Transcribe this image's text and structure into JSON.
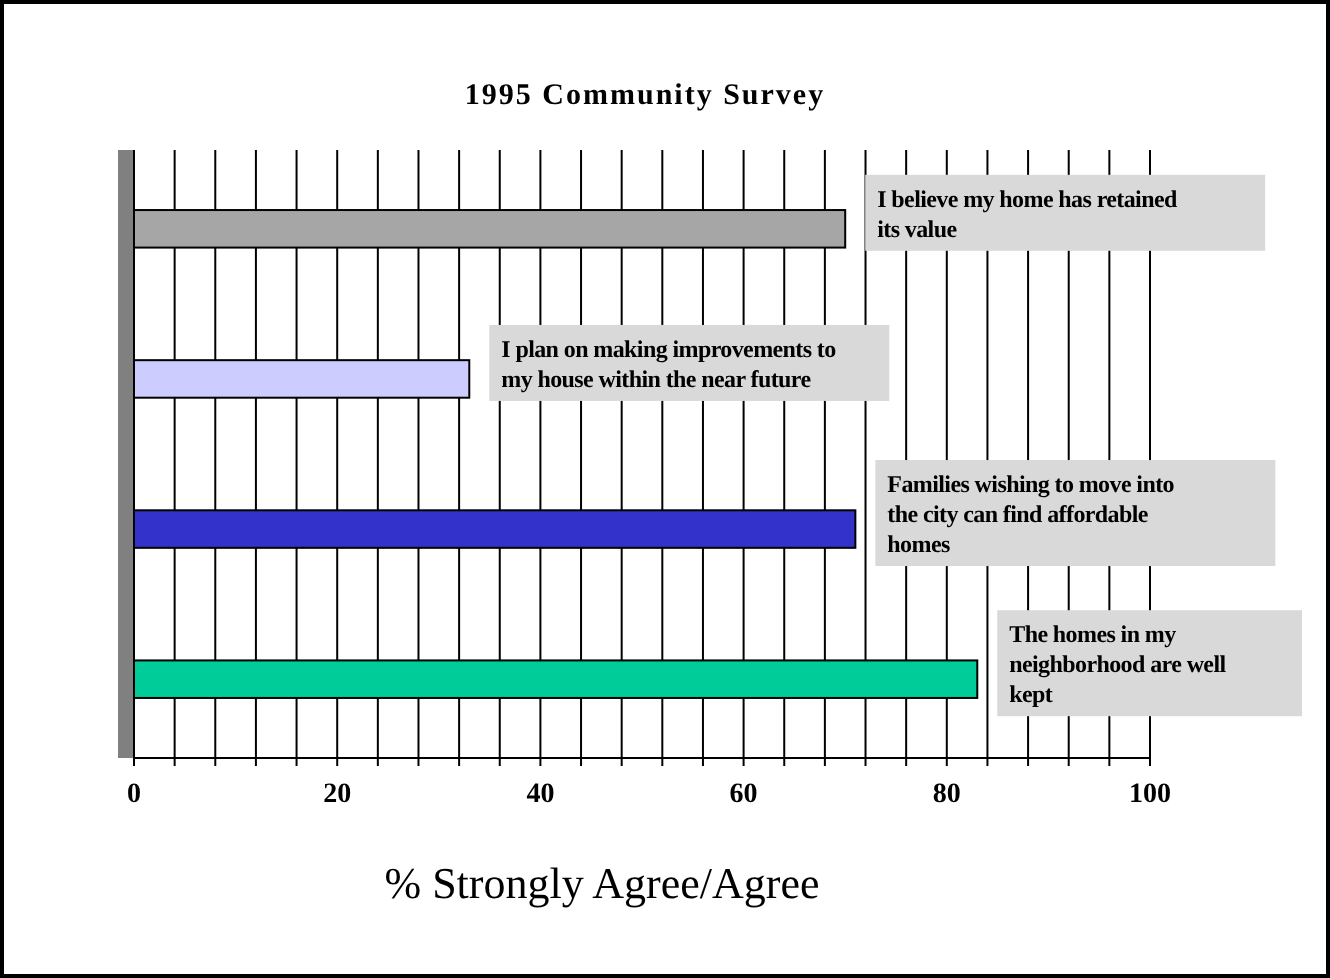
{
  "chart_data": {
    "type": "bar",
    "orientation": "horizontal",
    "title": "1995 Community Survey",
    "xlabel": "% Strongly Agree/Agree",
    "categories": [
      "I believe my home has retained its value",
      "I plan on making improvements to my house within the near future",
      "Families wishing to move into the city can find affordable homes",
      "The homes in my neighborhood are well kept"
    ],
    "values": [
      70,
      33,
      71,
      83
    ],
    "colors": [
      "#a6a6a6",
      "#ccccff",
      "#3333cc",
      "#00cc99"
    ],
    "xlim": [
      0,
      100
    ],
    "xticks": [
      0,
      {
        "value": 4,
        "label": null
      },
      {
        "value": 8,
        "label": null
      },
      {
        "value": 12,
        "label": null
      },
      {
        "value": 16,
        "label": null
      },
      20,
      {
        "value": 24,
        "label": null
      },
      {
        "value": 28,
        "label": null
      },
      {
        "value": 32,
        "label": null
      },
      {
        "value": 36,
        "label": null
      },
      40,
      {
        "value": 44,
        "label": null
      },
      {
        "value": 48,
        "label": null
      },
      {
        "value": 52,
        "label": null
      },
      {
        "value": 56,
        "label": null
      },
      60,
      {
        "value": 64,
        "label": null
      },
      {
        "value": 68,
        "label": null
      },
      {
        "value": 72,
        "label": null
      },
      {
        "value": 76,
        "label": null
      },
      80,
      {
        "value": 84,
        "label": null
      },
      {
        "value": 88,
        "label": null
      },
      {
        "value": 92,
        "label": null
      },
      {
        "value": 96,
        "label": null
      },
      100
    ],
    "grid": "x"
  }
}
